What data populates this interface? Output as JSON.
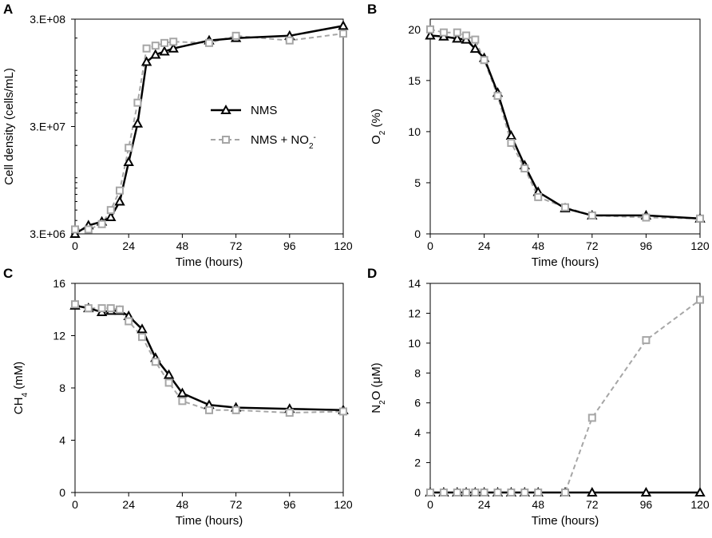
{
  "colors": {
    "nms": "#000000",
    "nms_no2": "#a6a6a6",
    "frame": "#000000"
  },
  "legend": {
    "items": [
      {
        "label": "NMS",
        "series": "NMS",
        "marker": "triangle"
      },
      {
        "label_parts": [
          "NMS + NO",
          "2",
          "-"
        ],
        "series": "NMS + NO2-",
        "marker": "square"
      }
    ]
  },
  "chart_data": [
    {
      "panel": "A",
      "type": "line",
      "yscale": "log",
      "title": "",
      "xlabel": "Time (hours)",
      "ylabel": "Cell density (cells/mL)",
      "xlim": [
        0,
        120
      ],
      "ylim": [
        3000000,
        300000000
      ],
      "xticks": [
        0,
        24,
        48,
        72,
        96,
        120
      ],
      "yticks": [
        3000000,
        30000000,
        300000000
      ],
      "ytick_labels": [
        "3.E+06",
        "3.E+07",
        "3.E+08"
      ],
      "series": [
        {
          "name": "NMS",
          "x": [
            0,
            6,
            12,
            16,
            20,
            24,
            28,
            32,
            36,
            40,
            44,
            60,
            72,
            96,
            120
          ],
          "y": [
            3000000,
            3600000,
            3900000,
            4300000,
            6000000,
            14000000,
            32000000,
            120000000,
            140000000,
            150000000,
            160000000,
            190000000,
            200000000,
            210000000,
            260000000
          ]
        },
        {
          "name": "NMS + NO2-",
          "x": [
            0,
            6,
            12,
            16,
            20,
            24,
            28,
            32,
            36,
            40,
            44,
            60,
            72,
            96,
            120
          ],
          "y": [
            3300000,
            3300000,
            3700000,
            5000000,
            7600000,
            19000000,
            50000000,
            160000000,
            170000000,
            180000000,
            185000000,
            180000000,
            210000000,
            190000000,
            220000000
          ]
        }
      ]
    },
    {
      "panel": "B",
      "type": "line",
      "title": "",
      "xlabel": "Time (hours)",
      "ylabel_parts": [
        "O",
        "2",
        " (%)"
      ],
      "xlim": [
        0,
        120
      ],
      "ylim": [
        0,
        21
      ],
      "xticks": [
        0,
        24,
        48,
        72,
        96,
        120
      ],
      "yticks": [
        0,
        5,
        10,
        15,
        20
      ],
      "series": [
        {
          "name": "NMS",
          "x": [
            0,
            6,
            12,
            16,
            20,
            24,
            30,
            36,
            42,
            48,
            60,
            72,
            96,
            120
          ],
          "y": [
            19.4,
            19.3,
            19.1,
            19.0,
            18.1,
            17.2,
            13.8,
            9.6,
            6.7,
            4.1,
            2.5,
            1.8,
            1.8,
            1.5
          ]
        },
        {
          "name": "NMS + NO2-",
          "x": [
            0,
            6,
            12,
            16,
            20,
            24,
            30,
            36,
            42,
            48,
            60,
            72,
            96,
            120
          ],
          "y": [
            20.0,
            19.7,
            19.7,
            19.4,
            19.0,
            17.0,
            13.5,
            8.9,
            6.4,
            3.6,
            2.6,
            1.8,
            1.6,
            1.5
          ]
        }
      ]
    },
    {
      "panel": "C",
      "type": "line",
      "title": "",
      "xlabel": "Time (hours)",
      "ylabel_parts": [
        "CH",
        "4",
        " (mM)"
      ],
      "xlim": [
        0,
        120
      ],
      "ylim": [
        0,
        16
      ],
      "xticks": [
        0,
        24,
        48,
        72,
        96,
        120
      ],
      "yticks": [
        0,
        4,
        8,
        12,
        16
      ],
      "series": [
        {
          "name": "NMS",
          "x": [
            0,
            6,
            12,
            16,
            20,
            24,
            30,
            36,
            42,
            48,
            60,
            72,
            96,
            120
          ],
          "y": [
            14.3,
            14.1,
            13.8,
            13.9,
            13.9,
            13.5,
            12.5,
            10.3,
            9.0,
            7.6,
            6.7,
            6.5,
            6.4,
            6.3
          ]
        },
        {
          "name": "NMS + NO2-",
          "x": [
            0,
            6,
            12,
            16,
            20,
            24,
            30,
            36,
            42,
            48,
            60,
            72,
            96,
            120
          ],
          "y": [
            14.4,
            14.1,
            14.1,
            14.1,
            14.0,
            13.1,
            11.9,
            10.0,
            8.4,
            7.0,
            6.3,
            6.3,
            6.1,
            6.2
          ]
        }
      ]
    },
    {
      "panel": "D",
      "type": "line",
      "title": "",
      "xlabel": "Time (hours)",
      "ylabel_parts": [
        "N",
        "2",
        "O (μM)"
      ],
      "xlim": [
        0,
        120
      ],
      "ylim": [
        0,
        14
      ],
      "xticks": [
        0,
        24,
        48,
        72,
        96,
        120
      ],
      "yticks": [
        0,
        2,
        4,
        6,
        8,
        10,
        12,
        14
      ],
      "series": [
        {
          "name": "NMS",
          "x": [
            0,
            6,
            12,
            16,
            20,
            24,
            30,
            36,
            42,
            48,
            60,
            72,
            96,
            120
          ],
          "y": [
            0,
            0,
            0,
            0,
            0,
            0,
            0,
            0,
            0,
            0,
            0,
            0,
            0,
            0
          ]
        },
        {
          "name": "NMS + NO2-",
          "x": [
            0,
            6,
            12,
            16,
            20,
            24,
            30,
            36,
            42,
            48,
            60,
            72,
            96,
            120
          ],
          "y": [
            0,
            0,
            0,
            0,
            0,
            0,
            0,
            0,
            0,
            0,
            0,
            5.0,
            10.2,
            12.9
          ]
        }
      ]
    }
  ]
}
